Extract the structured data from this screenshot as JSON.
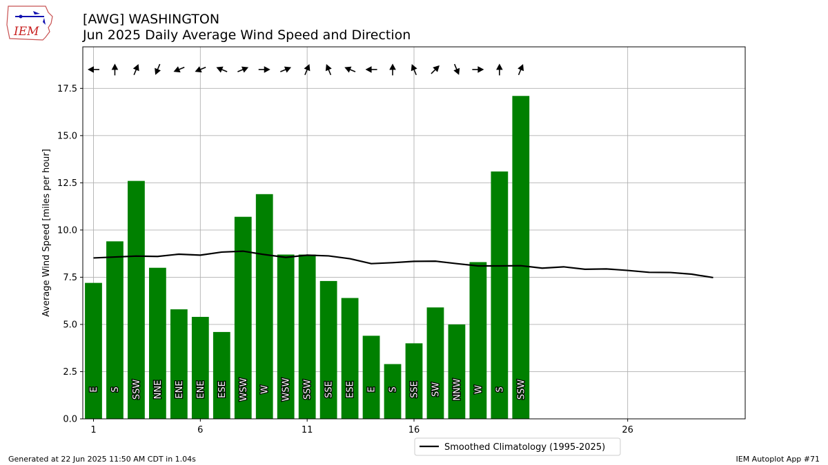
{
  "header": {
    "title_line1": "[AWG] WASHINGTON",
    "title_line2": "Jun 2025 Daily Average Wind Speed and Direction"
  },
  "logo": {
    "text": "IEM",
    "icon": "iowa-state-map-icon"
  },
  "footer": {
    "left": "Generated at 22 Jun 2025 11:50 AM CDT in 1.04s",
    "right": "IEM Autoplot App #71"
  },
  "colors": {
    "bar": "#008000",
    "climatology": "#000000",
    "grid": "#b0b0b0",
    "arrow": "#000000"
  },
  "chart_data": {
    "type": "bar",
    "title": "[AWG] WASHINGTON",
    "subtitle": "Jun 2025 Daily Average Wind Speed and Direction",
    "xlabel": "",
    "ylabel": "Average Wind Speed [miles per hour]",
    "xlim": [
      0.5,
      31.5
    ],
    "ylim": [
      0,
      19.7
    ],
    "xticks": [
      1,
      6,
      11,
      16,
      26
    ],
    "yticks": [
      0.0,
      2.5,
      5.0,
      7.5,
      10.0,
      12.5,
      15.0,
      17.5
    ],
    "grid": true,
    "legend_position": "bottom-center",
    "days": [
      1,
      2,
      3,
      4,
      5,
      6,
      7,
      8,
      9,
      10,
      11,
      12,
      13,
      14,
      15,
      16,
      17,
      18,
      19,
      20,
      21
    ],
    "values": [
      7.2,
      9.4,
      12.6,
      8.0,
      5.8,
      5.4,
      4.6,
      10.7,
      11.9,
      8.7,
      8.7,
      7.3,
      6.4,
      4.4,
      2.9,
      4.0,
      5.9,
      5.0,
      8.3,
      13.1,
      17.1
    ],
    "directions": [
      "E",
      "S",
      "SSW",
      "NNE",
      "ENE",
      "ENE",
      "ESE",
      "WSW",
      "W",
      "WSW",
      "SSW",
      "SSE",
      "ESE",
      "E",
      "S",
      "SSE",
      "SW",
      "NNW",
      "W",
      "S",
      "SSW"
    ],
    "direction_degrees": [
      90,
      180,
      202.5,
      22.5,
      67.5,
      67.5,
      112.5,
      247.5,
      270,
      247.5,
      202.5,
      157.5,
      112.5,
      90,
      180,
      157.5,
      225,
      337.5,
      270,
      180,
      202.5
    ],
    "series": [
      {
        "name": "Smoothed Climatology (1995-2025)",
        "x": [
          1,
          2,
          3,
          4,
          5,
          6,
          7,
          8,
          9,
          10,
          11,
          12,
          13,
          14,
          15,
          16,
          17,
          18,
          19,
          20,
          21,
          22,
          23,
          24,
          25,
          26,
          27,
          28,
          29,
          30
        ],
        "values": [
          8.52,
          8.57,
          8.62,
          8.6,
          8.72,
          8.67,
          8.83,
          8.88,
          8.7,
          8.55,
          8.67,
          8.63,
          8.48,
          8.22,
          8.27,
          8.34,
          8.35,
          8.22,
          8.1,
          8.1,
          8.11,
          7.98,
          8.05,
          7.92,
          7.94,
          7.86,
          7.76,
          7.75,
          7.66,
          7.48
        ]
      }
    ]
  }
}
